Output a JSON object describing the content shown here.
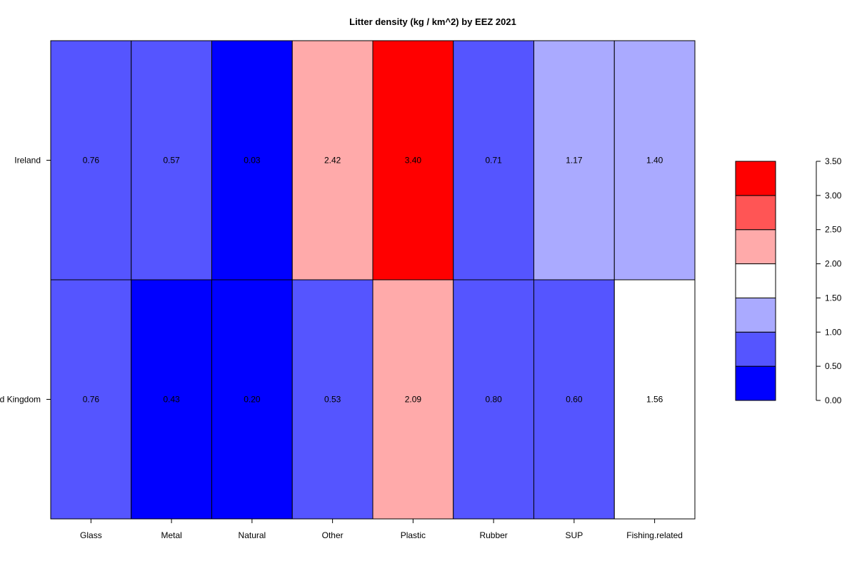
{
  "chart_data": {
    "type": "heatmap",
    "title": "Litter density (kg / km^2) by EEZ 2021",
    "rows": [
      "Ireland",
      "United Kingdom"
    ],
    "columns": [
      "Glass",
      "Metal",
      "Natural",
      "Other",
      "Plastic",
      "Rubber",
      "SUP",
      "Fishing.related"
    ],
    "values": [
      [
        0.76,
        0.57,
        0.03,
        2.42,
        3.4,
        0.71,
        1.17,
        1.4
      ],
      [
        0.76,
        0.43,
        0.2,
        0.53,
        2.09,
        0.8,
        0.6,
        1.56
      ]
    ],
    "cell_labels": [
      [
        "0.76",
        "0.57",
        "0.03",
        "2.42",
        "3.40",
        "0.71",
        "1.17",
        "1.40"
      ],
      [
        "0.76",
        "0.43",
        "0.20",
        "0.53",
        "2.09",
        "0.80",
        "0.60",
        "1.56"
      ]
    ],
    "legend": {
      "breaks": [
        0.0,
        0.5,
        1.0,
        1.5,
        2.0,
        2.5,
        3.0,
        3.5
      ],
      "tick_labels": [
        "0.00",
        "0.50",
        "1.00",
        "1.50",
        "2.00",
        "2.50",
        "3.00",
        "3.50"
      ],
      "colors": [
        "#0000ff",
        "#5555ff",
        "#aaaaff",
        "#ffffff",
        "#ffaaaa",
        "#ff5555",
        "#ff0000"
      ],
      "placement": "right"
    }
  }
}
